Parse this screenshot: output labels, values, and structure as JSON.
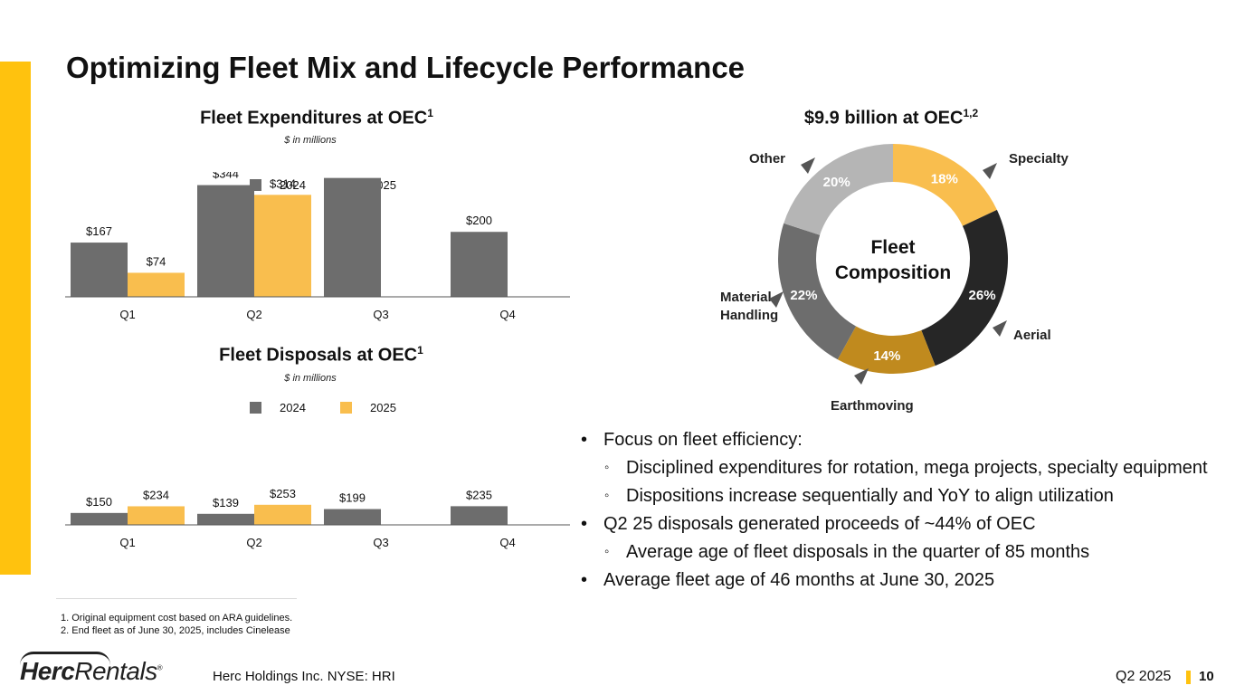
{
  "slide": {
    "title": "Optimizing Fleet Mix and Lifecycle Performance",
    "company": "Herc Holdings Inc.  NYSE: HRI",
    "quarter": "Q2 2025",
    "page": "10",
    "logo": {
      "bold": "Herc",
      "light": "Rentals",
      "reg": "®"
    },
    "accent_color": "#FFC20E"
  },
  "footnotes": [
    "1. Original equipment cost based on ARA guidelines.",
    "2. End fleet as of June 30, 2025, includes Cinelease"
  ],
  "bullets": [
    {
      "level": 1,
      "text": "Focus on fleet efficiency:"
    },
    {
      "level": 2,
      "text": "Disciplined expenditures for rotation, mega projects, specialty equipment"
    },
    {
      "level": 2,
      "text": "Dispositions increase sequentially and YoY to align utilization"
    },
    {
      "level": 1,
      "text": "Q2 25 disposals generated proceeds of ~44% of OEC"
    },
    {
      "level": 2,
      "text": "Average age of fleet disposals in the quarter of 85 months"
    },
    {
      "level": 1,
      "text": "Average fleet age of 46 months at June 30, 2025"
    }
  ],
  "chart_data": [
    {
      "type": "bar",
      "title": "Fleet Expenditures at OEC",
      "title_sup": "1",
      "subtitle": "$ in millions",
      "categories": [
        "Q1",
        "Q2",
        "Q3",
        "Q4"
      ],
      "series": [
        {
          "name": "2024",
          "color": "#6D6D6D",
          "values": [
            167,
            344,
            366,
            200
          ],
          "labels": [
            "$167",
            "$344",
            "$366",
            "$200"
          ]
        },
        {
          "name": "2025",
          "color": "#F9BE4E",
          "values": [
            74,
            314,
            null,
            null
          ],
          "labels": [
            "$74",
            "$314",
            "",
            ""
          ]
        }
      ],
      "legend": "top-center",
      "ylim": [
        0,
        400
      ],
      "grid": false
    },
    {
      "type": "bar",
      "title": "Fleet Disposals at OEC",
      "title_sup": "1",
      "subtitle": "$ in millions",
      "categories": [
        "Q1",
        "Q2",
        "Q3",
        "Q4"
      ],
      "series": [
        {
          "name": "2024",
          "color": "#6D6D6D",
          "values": [
            150,
            139,
            199,
            235
          ],
          "labels": [
            "$150",
            "$139",
            "$199",
            "$235"
          ]
        },
        {
          "name": "2025",
          "color": "#F9BE4E",
          "values": [
            234,
            253,
            null,
            null
          ],
          "labels": [
            "$234",
            "$253",
            "",
            ""
          ]
        }
      ],
      "legend": "top-center",
      "ylim": [
        0,
        300
      ],
      "grid": false
    },
    {
      "type": "pie",
      "title": "$9.9 billion at OEC",
      "title_sup": "1,2",
      "center_label": [
        "Fleet",
        "Composition"
      ],
      "slices": [
        {
          "name": "Specialty",
          "value": 18,
          "label": "18%",
          "color": "#F9BE4E"
        },
        {
          "name": "Aerial",
          "value": 26,
          "label": "26%",
          "color": "#262626"
        },
        {
          "name": "Earthmoving",
          "value": 14,
          "label": "14%",
          "color": "#C08A1E"
        },
        {
          "name": "Material Handling",
          "value": 22,
          "label": "22%",
          "color": "#6D6D6D"
        },
        {
          "name": "Other",
          "value": 20,
          "label": "20%",
          "color": "#B5B5B5"
        }
      ]
    }
  ]
}
